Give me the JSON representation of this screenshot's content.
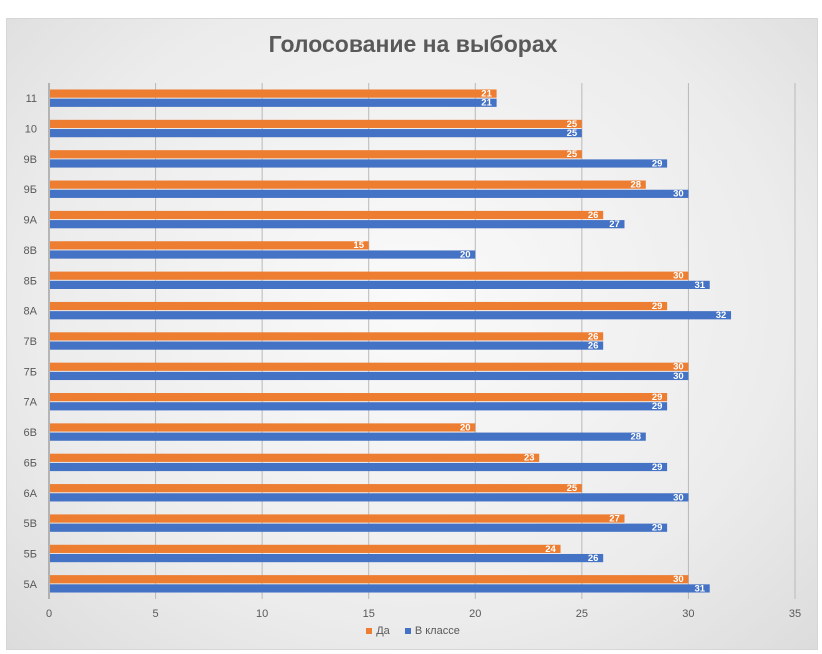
{
  "chart_data": {
    "type": "bar",
    "orientation": "horizontal",
    "title": "Голосование на выборах",
    "xlabel": "",
    "ylabel": "",
    "xlim": [
      0,
      35
    ],
    "xticks": [
      0,
      5,
      10,
      15,
      20,
      25,
      30,
      35
    ],
    "grid": true,
    "legend_position": "bottom",
    "categories": [
      "5А",
      "5Б",
      "5В",
      "6А",
      "6Б",
      "6В",
      "7А",
      "7Б",
      "7В",
      "8А",
      "8Б",
      "8В",
      "9А",
      "9Б",
      "9В",
      "10",
      "11"
    ],
    "series": [
      {
        "name": "Да",
        "color": "#ed7d31",
        "values": [
          30,
          24,
          27,
          25,
          23,
          20,
          29,
          30,
          26,
          29,
          30,
          15,
          26,
          28,
          25,
          25,
          21
        ]
      },
      {
        "name": "В классе",
        "color": "#4472c4",
        "values": [
          31,
          26,
          29,
          30,
          29,
          28,
          29,
          30,
          26,
          32,
          31,
          20,
          27,
          30,
          29,
          25,
          21
        ]
      }
    ]
  }
}
